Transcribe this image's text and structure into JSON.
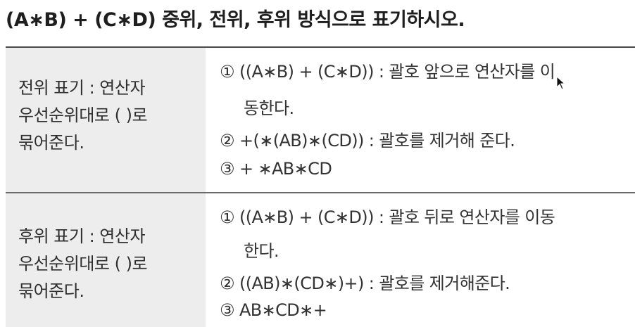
{
  "title": "(A∗B) + (C∗D) 중위, 전위, 후위 방식으로 표기하시오.",
  "rows": [
    {
      "label": "전위 표기 : 연산자\n우선순위대로 ( )로\n묶어준다.",
      "lines": [
        "① ((A∗B) + (C∗D)) : 괄호 앞으로 연산자를 이",
        "동한다.",
        "② +(∗(AB)∗(CD)) : 괄호를 제거해 준다.",
        "③ + ∗AB∗CD"
      ]
    },
    {
      "label": "후위 표기 : 연산자\n우선순위대로 ( )로\n묶어준다.",
      "lines": [
        "① ((A∗B) + (C∗D)) : 괄호 뒤로 연산자를 이동",
        "한다.",
        "② ((AB)∗(CD∗)+) : 괄호를 제거해준다.",
        "③ AB∗CD∗+"
      ]
    }
  ]
}
